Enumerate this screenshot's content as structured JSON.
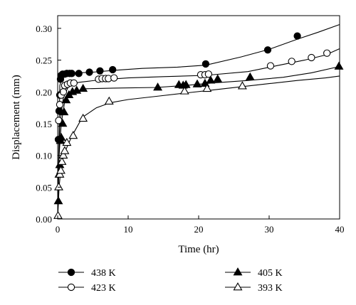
{
  "chart_data": {
    "type": "line",
    "title": "",
    "xlabel": "Time (hr)",
    "ylabel": "Displacement (mm)",
    "xlim": [
      0,
      40
    ],
    "ylim": [
      0,
      0.32
    ],
    "x_ticks": [
      0,
      10,
      20,
      30,
      40
    ],
    "x_tick_labels": [
      "0",
      "10",
      "20",
      "30",
      "40"
    ],
    "y_ticks": [
      0.0,
      0.05,
      0.1,
      0.15,
      0.2,
      0.25,
      0.3
    ],
    "y_tick_labels": [
      "0.00",
      "0.05",
      "0.10",
      "0.15",
      "0.20",
      "0.25",
      "0.30"
    ],
    "grid": false,
    "legend_position": "bottom",
    "series": [
      {
        "name": "438 K",
        "marker": "filled-circle",
        "line_x": [
          0,
          0.3,
          0.8,
          1.5,
          3,
          5,
          8,
          12,
          17,
          21,
          26,
          30,
          34,
          37,
          40
        ],
        "line_y": [
          0,
          0.21,
          0.228,
          0.229,
          0.23,
          0.231,
          0.234,
          0.237,
          0.239,
          0.242,
          0.255,
          0.267,
          0.283,
          0.294,
          0.306
        ],
        "x": [
          0.1,
          0.2,
          0.3,
          0.4,
          0.5,
          0.7,
          1.0,
          1.3,
          1.7,
          2.0,
          3.0,
          4.5,
          6.0,
          7.8,
          21.0,
          29.8,
          34.0
        ],
        "y": [
          0.125,
          0.17,
          0.195,
          0.22,
          0.226,
          0.228,
          0.228,
          0.229,
          0.229,
          0.229,
          0.229,
          0.231,
          0.233,
          0.235,
          0.244,
          0.266,
          0.288
        ]
      },
      {
        "name": "423 K",
        "marker": "open-circle",
        "line_x": [
          0,
          0.3,
          0.8,
          1.5,
          3,
          6,
          10,
          15,
          21,
          27,
          31,
          35,
          38,
          40
        ],
        "line_y": [
          0,
          0.15,
          0.19,
          0.208,
          0.215,
          0.219,
          0.222,
          0.224,
          0.226,
          0.232,
          0.241,
          0.25,
          0.258,
          0.268
        ],
        "x": [
          0.15,
          0.3,
          0.5,
          0.8,
          1.0,
          1.4,
          1.8,
          2.3,
          5.8,
          6.3,
          6.8,
          7.2,
          8.0,
          20.3,
          20.9,
          21.4,
          30.2,
          33.2,
          36.0,
          38.2
        ],
        "y": [
          0.155,
          0.18,
          0.195,
          0.2,
          0.21,
          0.212,
          0.214,
          0.214,
          0.22,
          0.221,
          0.221,
          0.221,
          0.222,
          0.227,
          0.227,
          0.228,
          0.241,
          0.248,
          0.254,
          0.261
        ]
      },
      {
        "name": "405 K",
        "marker": "filled-triangle",
        "line_x": [
          0,
          0.2,
          0.5,
          1,
          2,
          4,
          8,
          14,
          18,
          22,
          27,
          32,
          36,
          40
        ],
        "line_y": [
          0,
          0.1,
          0.15,
          0.185,
          0.2,
          0.205,
          0.206,
          0.207,
          0.21,
          0.214,
          0.218,
          0.223,
          0.23,
          0.24
        ],
        "x": [
          0.1,
          0.2,
          0.3,
          0.4,
          0.5,
          0.7,
          0.9,
          1.2,
          1.6,
          2.1,
          2.7,
          3.6,
          14.2,
          17.2,
          17.8,
          18.2,
          19.8,
          20.9,
          21.7,
          22.7,
          27.3,
          39.9
        ],
        "y": [
          0.028,
          0.07,
          0.085,
          0.123,
          0.128,
          0.15,
          0.168,
          0.187,
          0.195,
          0.2,
          0.202,
          0.205,
          0.207,
          0.211,
          0.21,
          0.211,
          0.212,
          0.213,
          0.218,
          0.22,
          0.223,
          0.24
        ]
      },
      {
        "name": "393 K",
        "marker": "open-triangle",
        "line_x": [
          0,
          0.2,
          0.5,
          1,
          2,
          3.5,
          5.5,
          7.5,
          10,
          14,
          18,
          22,
          26,
          30,
          34,
          38,
          40
        ],
        "line_y": [
          0,
          0.05,
          0.085,
          0.105,
          0.13,
          0.16,
          0.175,
          0.183,
          0.188,
          0.193,
          0.198,
          0.203,
          0.208,
          0.213,
          0.218,
          0.222,
          0.225
        ],
        "x": [
          0.05,
          0.15,
          0.3,
          0.45,
          0.6,
          0.8,
          1.0,
          1.3,
          2.2,
          3.6,
          7.3,
          18.0,
          21.2,
          26.2
        ],
        "y": [
          0.005,
          0.05,
          0.07,
          0.076,
          0.09,
          0.1,
          0.107,
          0.12,
          0.131,
          0.158,
          0.185,
          0.201,
          0.205,
          0.209
        ]
      }
    ]
  }
}
